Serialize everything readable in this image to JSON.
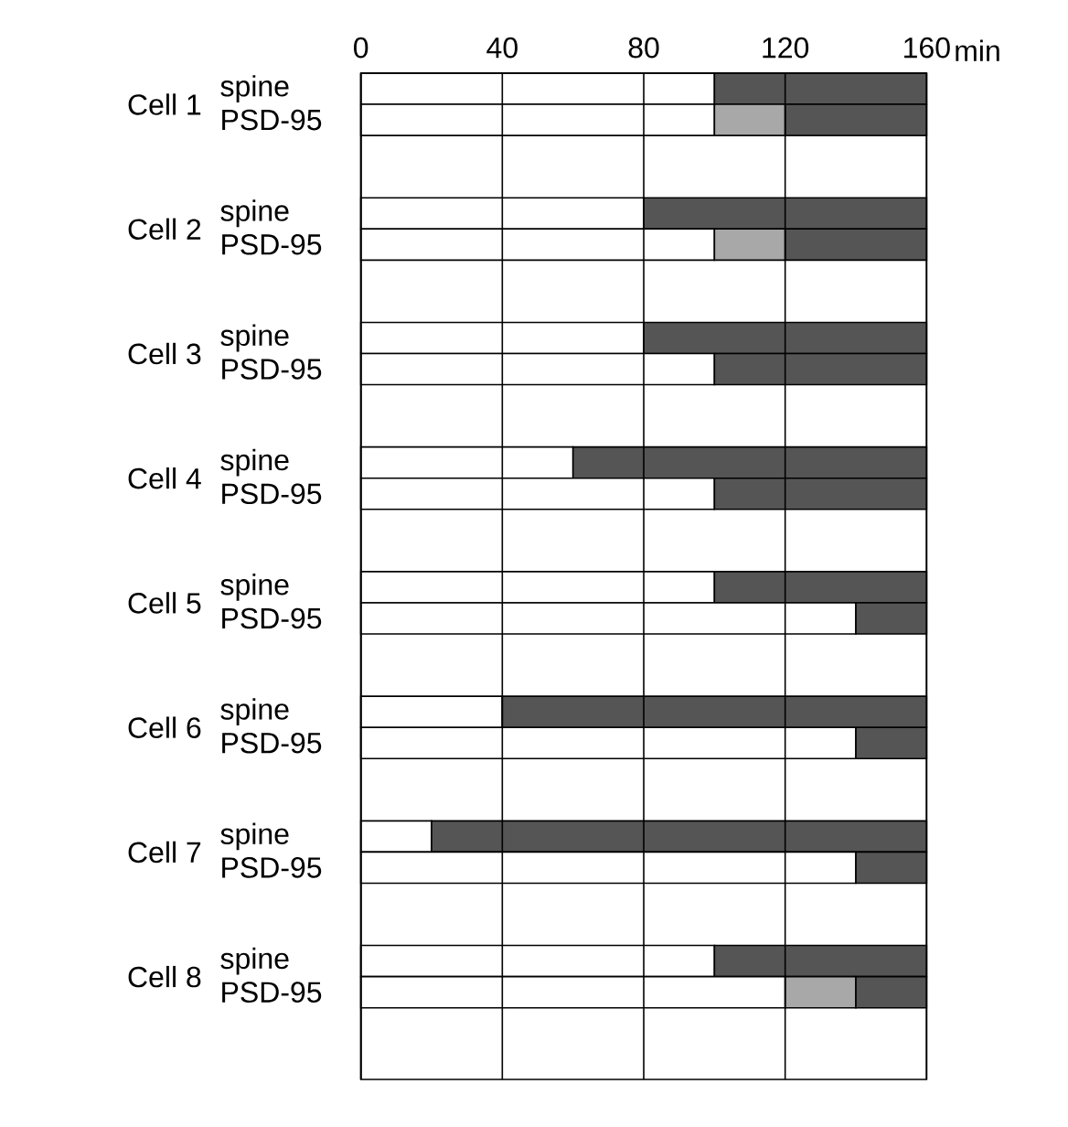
{
  "chart_data": {
    "type": "bar",
    "orientation": "horizontal",
    "stacked": true,
    "xlabel": "min",
    "categories": [
      "spine",
      "PSD-95",
      "spine",
      "PSD-95",
      "spine",
      "PSD-95",
      "spine",
      "PSD-95",
      "spine",
      "PSD-95",
      "spine",
      "PSD-95",
      "spine",
      "PSD-95",
      "spine",
      "PSD-95"
    ],
    "annotations": [
      "Cell 1",
      "Cell 2",
      "Cell 3",
      "Cell 4",
      "Cell 5",
      "Cell 6",
      "Cell 7",
      "Cell 8"
    ],
    "series": [
      {
        "color": "#ffffff",
        "values": [
          100,
          100,
          80,
          100,
          80,
          100,
          60,
          100,
          100,
          140,
          40,
          140,
          20,
          140,
          100,
          120
        ]
      },
      {
        "color": "#a8a8a8",
        "values": [
          null,
          20,
          null,
          20,
          null,
          null,
          null,
          null,
          null,
          null,
          null,
          null,
          null,
          null,
          null,
          20
        ]
      },
      {
        "color": "#555555",
        "values": [
          60,
          40,
          80,
          40,
          80,
          60,
          100,
          60,
          60,
          20,
          120,
          20,
          140,
          20,
          60,
          20
        ]
      }
    ],
    "xlim": [
      0,
      160
    ],
    "xticks": [
      0,
      40,
      80,
      120,
      160
    ],
    "grid": "x"
  }
}
